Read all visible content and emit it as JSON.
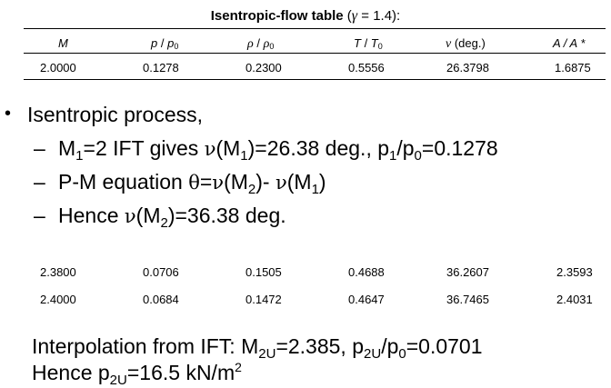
{
  "table_title": {
    "bold": "Isentropic-flow table",
    "open": " (",
    "gamma_symbol": "γ",
    "gamma_value": " = 1.4):"
  },
  "columns": {
    "M": "M",
    "p_ratio": {
      "a": "p",
      "slash": " / ",
      "b": "p",
      "sub": "0"
    },
    "rho_ratio": {
      "a": "ρ",
      "slash": " / ",
      "b": "ρ",
      "sub": "0"
    },
    "T_ratio": {
      "a": "T",
      "slash": " / ",
      "b": "T",
      "sub": "0"
    },
    "nu": {
      "sym": "ν",
      "unit": " (deg.)"
    },
    "A_ratio": "A / A *"
  },
  "rows": [
    [
      "2.0000",
      "0.1278",
      "0.2300",
      "0.5556",
      "26.3798",
      "1.6875"
    ],
    [
      "2.3800",
      "0.0706",
      "0.1505",
      "0.4688",
      "36.2607",
      "2.3593"
    ],
    [
      "2.4000",
      "0.0684",
      "0.1472",
      "0.4647",
      "36.7465",
      "2.4031"
    ]
  ],
  "bullet": {
    "marker": "•",
    "text": "Isentropic process,"
  },
  "subs": {
    "dash": "–",
    "line1": {
      "a": "M",
      "a_sub": "1",
      "b": "=2 IFT gives ",
      "nu": "ν",
      "c": "(M",
      "c_sub": "1",
      "d": ")=26.38 deg., p",
      "d_sub": "1",
      "e": "/p",
      "e_sub": "0",
      "f": "=0.1278"
    },
    "line2": {
      "a": "P-M equation ",
      "theta": "θ",
      "b": "=",
      "nu1": "ν",
      "c": "(M",
      "c_sub": "2",
      "d": ")- ",
      "nu2": "ν",
      "e": "(M",
      "e_sub": "1",
      "f": ")"
    },
    "line3": {
      "a": "Hence ",
      "nu": "ν",
      "b": "(M",
      "b_sub": "2",
      "c": ")=36.38 deg."
    }
  },
  "interp": {
    "line1": {
      "a": "Interpolation from IFT: M",
      "a_sub": "2U",
      "b": "=2.385, p",
      "b_sub": "2U",
      "c": "/p",
      "c_sub": "0",
      "d": "=0.0701"
    },
    "line2": {
      "a": "Hence p",
      "a_sub": "2U",
      "b": "=16.5 kN/m",
      "sup": "2"
    }
  }
}
